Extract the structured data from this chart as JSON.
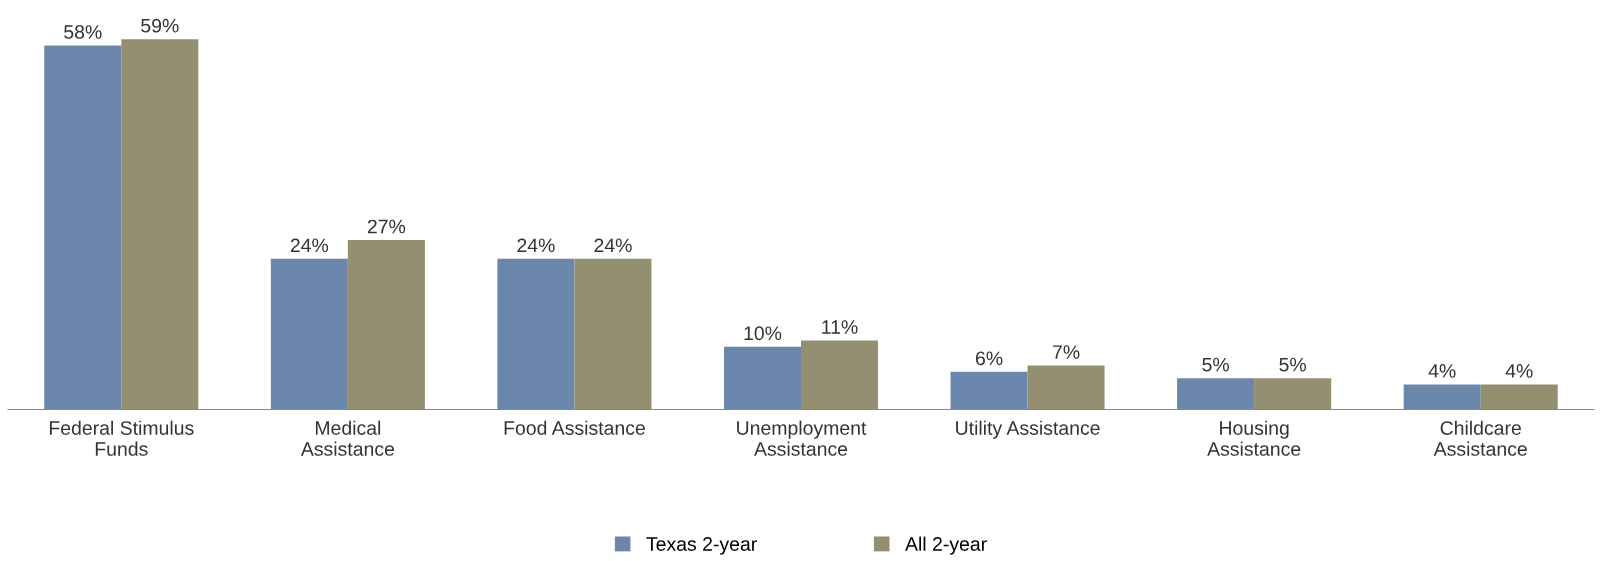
{
  "chart_data": {
    "type": "bar",
    "categories": [
      "Federal Stimulus\nFunds",
      "Medical\nAssistance",
      "Food Assistance",
      "Unemployment\nAssistance",
      "Utility Assistance",
      "Housing\nAssistance",
      "Childcare\nAssistance"
    ],
    "series": [
      {
        "name": "Texas 2-year",
        "color": "#6b87ab",
        "values": [
          58,
          24,
          24,
          10,
          6,
          5,
          4
        ],
        "value_labels": [
          "58%",
          "24%",
          "24%",
          "10%",
          "6%",
          "5%",
          "4%"
        ]
      },
      {
        "name": "All 2-year",
        "color": "#948f70",
        "values": [
          59,
          27,
          24,
          11,
          7,
          5,
          4
        ],
        "value_labels": [
          "59%",
          "27%",
          "24%",
          "11%",
          "7%",
          "5%",
          "4%"
        ]
      }
    ],
    "legend": "bottom",
    "grid": false
  }
}
